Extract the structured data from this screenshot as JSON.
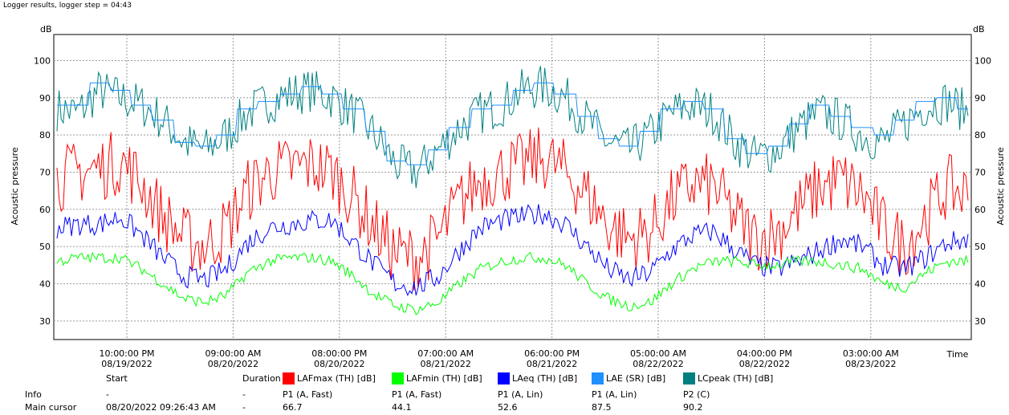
{
  "header": {
    "title": "Logger results, logger step = 04:43"
  },
  "chart_data": {
    "type": "line",
    "ylabel": "Acoustic pressure",
    "yunit": "dB",
    "xlabel": "Time",
    "ylim": [
      25,
      107
    ],
    "yticks": [
      30,
      40,
      50,
      60,
      70,
      80,
      90,
      100
    ],
    "grid": true,
    "xtick_labels": [
      {
        "time": "10:00:00 PM",
        "date": "08/19/2022"
      },
      {
        "time": "09:00:00 AM",
        "date": "08/20/2022"
      },
      {
        "time": "08:00:00 PM",
        "date": "08/20/2022"
      },
      {
        "time": "07:00:00 AM",
        "date": "08/21/2022"
      },
      {
        "time": "06:00:00 PM",
        "date": "08/21/2022"
      },
      {
        "time": "05:00:00 AM",
        "date": "08/22/2022"
      },
      {
        "time": "04:00:00 PM",
        "date": "08/22/2022"
      },
      {
        "time": "03:00:00 AM",
        "date": "08/23/2022"
      }
    ],
    "series": [
      {
        "name": "LCpeak (TH) [dB]",
        "color": "#008080",
        "values": [
          87,
          86,
          92,
          90,
          88,
          84,
          78,
          76,
          80,
          86,
          89,
          91,
          92,
          90,
          86,
          80,
          72,
          70,
          76,
          82,
          86,
          88,
          92,
          93,
          90,
          84,
          78,
          76,
          80,
          86,
          88,
          86,
          78,
          74,
          76,
          82,
          86,
          84,
          80,
          78,
          83,
          88,
          89,
          86
        ]
      },
      {
        "name": "LAE (SR) [dB]",
        "color": "#1e90ff",
        "values": [
          88,
          88,
          94,
          92,
          88,
          84,
          78,
          77,
          80,
          87,
          89,
          91,
          93,
          91,
          87,
          81,
          73,
          72,
          76,
          82,
          87,
          88,
          92,
          94,
          91,
          85,
          79,
          77,
          81,
          87,
          89,
          87,
          79,
          75,
          77,
          83,
          88,
          85,
          82,
          80,
          84,
          89,
          90,
          87
        ]
      },
      {
        "name": "LAFmax (TH) [dB]",
        "color": "#ff0000",
        "values": [
          68,
          70,
          71,
          73,
          67,
          58,
          52,
          50,
          55,
          65,
          70,
          71,
          72,
          70,
          63,
          55,
          48,
          47,
          52,
          62,
          68,
          70,
          72,
          74,
          70,
          64,
          56,
          52,
          54,
          62,
          67,
          66,
          58,
          52,
          54,
          60,
          66,
          68,
          64,
          55,
          50,
          58,
          66,
          64
        ]
      },
      {
        "name": "LAeq (TH) [dB]",
        "color": "#0000ff",
        "values": [
          55,
          56,
          56,
          58,
          53,
          47,
          42,
          41,
          44,
          51,
          55,
          56,
          57,
          57,
          51,
          45,
          40,
          39,
          42,
          49,
          55,
          57,
          58,
          59,
          56,
          50,
          44,
          41,
          43,
          49,
          53,
          54,
          49,
          45,
          44,
          46,
          49,
          52,
          50,
          45,
          44,
          47,
          51,
          52
        ]
      },
      {
        "name": "LAFmin (TH) [dB]",
        "color": "#00ff00",
        "values": [
          46,
          47,
          47,
          47,
          44,
          40,
          36,
          35,
          37,
          43,
          46,
          47,
          47,
          46,
          42,
          37,
          34,
          33,
          35,
          40,
          44,
          46,
          47,
          47,
          45,
          40,
          36,
          34,
          35,
          40,
          44,
          46,
          46,
          45,
          45,
          46,
          46,
          45,
          44,
          40,
          39,
          43,
          46,
          46
        ]
      }
    ]
  },
  "legend": {
    "start_header": "Start",
    "duration_header": "Duration",
    "items": [
      {
        "label": "LAFmax (TH) [dB]",
        "color": "#ff0000"
      },
      {
        "label": "LAFmin (TH) [dB]",
        "color": "#00ff00"
      },
      {
        "label": "LAeq (TH) [dB]",
        "color": "#0000ff"
      },
      {
        "label": "LAE (SR) [dB]",
        "color": "#1e90ff"
      },
      {
        "label": "LCpeak (TH) [dB]",
        "color": "#008080"
      }
    ]
  },
  "info_row": {
    "label": "Info",
    "start": "-",
    "duration": "-",
    "values": [
      "P1 (A, Fast)",
      "P1 (A, Fast)",
      "P1 (A, Lin)",
      "P1 (A, Lin)",
      "P2 (C)"
    ]
  },
  "cursor_row": {
    "label": "Main cursor",
    "start": "08/20/2022 09:26:43 AM",
    "duration": "-",
    "values": [
      "66.7",
      "44.1",
      "52.6",
      "87.5",
      "90.2"
    ]
  }
}
